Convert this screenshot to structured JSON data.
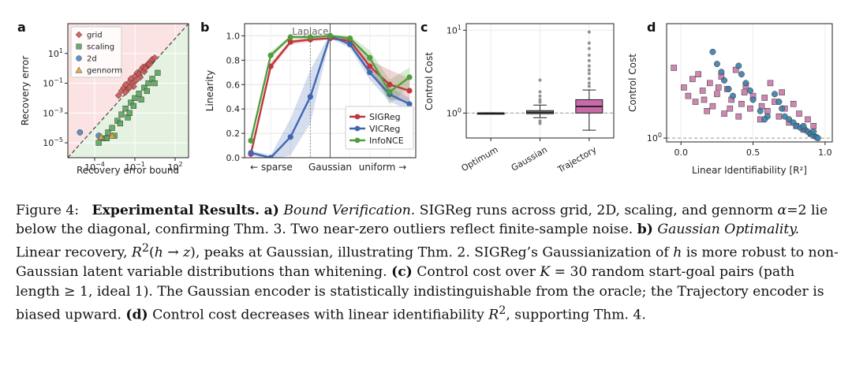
{
  "chart_data": [
    {
      "panel": "a",
      "type": "scatter",
      "xlabel": "Recovery error bound",
      "ylabel": "Recovery error",
      "xscale": "log",
      "yscale": "log",
      "xlim": [
        1e-06,
        1000.0
      ],
      "ylim": [
        1e-06,
        1000.0
      ],
      "xticks": [
        "10^-4",
        "10^-1",
        "10^2"
      ],
      "yticks": [
        "10^-5",
        "10^-3",
        "10^-1",
        "10^1"
      ],
      "legend_placement": "top-left",
      "colors": {
        "above": "#fbe3e3",
        "below": "#e5f2e1",
        "diagonal": "#444444"
      },
      "series": [
        {
          "name": "grid",
          "marker": "diamond",
          "color": "#cc5555",
          "points": [
            [
              0.006,
              0.015
            ],
            [
              0.01,
              0.03
            ],
            [
              0.015,
              0.05
            ],
            [
              0.02,
              0.08
            ],
            [
              0.03,
              0.04
            ],
            [
              0.04,
              0.12
            ],
            [
              0.05,
              0.2
            ],
            [
              0.07,
              0.1
            ],
            [
              0.1,
              0.3
            ],
            [
              0.12,
              0.15
            ],
            [
              0.15,
              0.5
            ],
            [
              0.2,
              0.4
            ],
            [
              0.3,
              0.8
            ],
            [
              0.4,
              1.2
            ],
            [
              0.5,
              0.6
            ],
            [
              0.7,
              1.5
            ],
            [
              1,
              2
            ],
            [
              1.5,
              3
            ],
            [
              2,
              4
            ],
            [
              3,
              5
            ],
            [
              0.08,
              0.06
            ],
            [
              0.25,
              0.25
            ],
            [
              0.6,
              1
            ],
            [
              1.2,
              1.8
            ],
            [
              0.02,
              0.025
            ],
            [
              0.04,
              0.05
            ]
          ]
        },
        {
          "name": "scaling",
          "marker": "square",
          "color": "#5aa55a",
          "points": [
            [
              0.0002,
              1e-05
            ],
            [
              0.0005,
              2e-05
            ],
            [
              0.001,
              5e-05
            ],
            [
              0.002,
              0.0001
            ],
            [
              0.005,
              0.0003
            ],
            [
              0.01,
              0.0008
            ],
            [
              0.02,
              0.002
            ],
            [
              0.05,
              0.005
            ],
            [
              0.1,
              0.01
            ],
            [
              0.2,
              0.02
            ],
            [
              0.5,
              0.05
            ],
            [
              1,
              0.1
            ],
            [
              2,
              0.2
            ],
            [
              5,
              0.5
            ],
            [
              0.003,
              3e-05
            ],
            [
              0.008,
              0.0002
            ],
            [
              0.03,
              0.0005
            ],
            [
              0.08,
              0.003
            ],
            [
              0.3,
              0.008
            ],
            [
              0.8,
              0.03
            ],
            [
              3,
              0.1
            ],
            [
              0.0008,
              2e-05
            ],
            [
              0.04,
              0.001
            ]
          ]
        },
        {
          "name": "2d",
          "marker": "circle",
          "color": "#4f86c6",
          "points": [
            [
              8e-06,
              5e-05
            ],
            [
              0.0002,
              3e-05
            ]
          ]
        },
        {
          "name": "gennorm",
          "marker": "triangle",
          "color": "#e8a23a",
          "points": [
            [
              0.0003,
              2.5e-05
            ],
            [
              0.002,
              3e-05
            ]
          ]
        }
      ]
    },
    {
      "panel": "b",
      "type": "line",
      "ylabel": "Linearity",
      "ylim": [
        0,
        1.1
      ],
      "yticks": [
        "0.0",
        "0.2",
        "0.4",
        "0.6",
        "0.8",
        "1.0"
      ],
      "x_annotations": {
        "left": "← sparse",
        "center": "Gaussian",
        "right": "uniform →",
        "top": "Laplace"
      },
      "x": [
        0,
        1,
        2,
        3,
        4,
        5,
        6,
        7,
        8
      ],
      "legend_placement": "lower-right",
      "series": [
        {
          "name": "SIGReg",
          "color": "#c0363c",
          "values": [
            0.03,
            0.75,
            0.95,
            0.97,
            0.98,
            0.96,
            0.75,
            0.6,
            0.55
          ],
          "band": [
            0.02,
            0.03,
            0.02,
            0.02,
            0.01,
            0.02,
            0.05,
            0.12,
            0.1
          ]
        },
        {
          "name": "VICReg",
          "color": "#3e67b2",
          "values": [
            0.04,
            0.0,
            0.17,
            0.5,
            1.0,
            0.93,
            0.7,
            0.52,
            0.44
          ],
          "band": [
            0.02,
            0.02,
            0.15,
            0.22,
            0.02,
            0.03,
            0.06,
            0.06,
            0.05
          ]
        },
        {
          "name": "InfoNCE",
          "color": "#4f9e3b",
          "values": [
            0.14,
            0.84,
            0.99,
            0.99,
            1.0,
            0.98,
            0.82,
            0.54,
            0.66
          ],
          "band": [
            0.03,
            0.03,
            0.01,
            0.01,
            0.01,
            0.02,
            0.06,
            0.1,
            0.08
          ]
        }
      ]
    },
    {
      "panel": "c",
      "type": "box",
      "ylabel": "Control Cost",
      "yscale": "log",
      "ylim": [
        0.5,
        12
      ],
      "yticks": [
        "10^0",
        "10^1"
      ],
      "reference_line": 1,
      "categories": [
        "Optimum",
        "Gaussian",
        "Trajectory"
      ],
      "boxes": [
        {
          "category": "Optimum",
          "min": 1.0,
          "q1": 1.0,
          "median": 1.0,
          "q3": 1.0,
          "max": 1.0,
          "fliers": [],
          "color": "#333333"
        },
        {
          "category": "Gaussian",
          "min": 0.88,
          "q1": 0.98,
          "median": 1.02,
          "q3": 1.07,
          "max": 1.25,
          "fliers": [
            0.75,
            0.8,
            1.35,
            1.45,
            1.6,
            1.8,
            2.5
          ],
          "color": "#9aa0a6"
        },
        {
          "category": "Trajectory",
          "min": 0.62,
          "q1": 1.0,
          "median": 1.2,
          "q3": 1.45,
          "max": 1.9,
          "fliers": [
            2.1,
            2.3,
            2.6,
            3.0,
            3.3,
            3.7,
            4.3,
            5.0,
            6.0,
            7.0,
            9.5
          ],
          "color": "#c86aa8"
        }
      ]
    },
    {
      "panel": "d",
      "type": "scatter",
      "xlabel": "Linear Identifiability [R²]",
      "ylabel": "Control Cost",
      "yscale": "log",
      "xlim": [
        -0.1,
        1.05
      ],
      "ylim": [
        0.92,
        12
      ],
      "xticks": [
        "0.0",
        "0.5",
        "1.0"
      ],
      "yticks": [
        "10^0"
      ],
      "reference_line": 1,
      "series": [
        {
          "marker": "square",
          "color": "#c97aa9",
          "points": [
            [
              -0.05,
              4.6
            ],
            [
              0.02,
              3.0
            ],
            [
              0.05,
              2.5
            ],
            [
              0.08,
              3.6
            ],
            [
              0.1,
              2.2
            ],
            [
              0.12,
              4.0
            ],
            [
              0.15,
              2.8
            ],
            [
              0.18,
              1.8
            ],
            [
              0.2,
              3.3
            ],
            [
              0.22,
              2.0
            ],
            [
              0.25,
              2.6
            ],
            [
              0.28,
              3.8
            ],
            [
              0.3,
              1.7
            ],
            [
              0.32,
              2.9
            ],
            [
              0.35,
              2.3
            ],
            [
              0.38,
              4.4
            ],
            [
              0.4,
              1.6
            ],
            [
              0.42,
              2.1
            ],
            [
              0.45,
              3.1
            ],
            [
              0.48,
              1.9
            ],
            [
              0.5,
              2.5
            ],
            [
              0.55,
              1.5
            ],
            [
              0.58,
              2.4
            ],
            [
              0.6,
              1.8
            ],
            [
              0.62,
              3.3
            ],
            [
              0.65,
              2.2
            ],
            [
              0.68,
              1.6
            ],
            [
              0.7,
              2.7
            ],
            [
              0.72,
              1.9
            ],
            [
              0.75,
              1.4
            ],
            [
              0.78,
              2.1
            ],
            [
              0.8,
              1.3
            ],
            [
              0.82,
              1.7
            ],
            [
              0.85,
              1.2
            ],
            [
              0.88,
              1.5
            ],
            [
              0.9,
              1.1
            ],
            [
              0.92,
              1.3
            ],
            [
              0.16,
              2.3
            ],
            [
              0.26,
              3.0
            ],
            [
              0.34,
              1.9
            ],
            [
              0.44,
              2.7
            ],
            [
              0.56,
              2.0
            ]
          ]
        },
        {
          "marker": "circle",
          "color": "#3c7ea8",
          "points": [
            [
              0.22,
              6.5
            ],
            [
              0.25,
              5.0
            ],
            [
              0.28,
              4.2
            ],
            [
              0.3,
              3.5
            ],
            [
              0.33,
              2.9
            ],
            [
              0.36,
              2.5
            ],
            [
              0.4,
              4.8
            ],
            [
              0.42,
              4.0
            ],
            [
              0.45,
              3.3
            ],
            [
              0.48,
              2.8
            ],
            [
              0.5,
              2.3
            ],
            [
              0.55,
              1.8
            ],
            [
              0.6,
              1.6
            ],
            [
              0.65,
              2.6
            ],
            [
              0.68,
              2.2
            ],
            [
              0.7,
              1.9
            ],
            [
              0.72,
              1.6
            ],
            [
              0.75,
              1.5
            ],
            [
              0.78,
              1.4
            ],
            [
              0.8,
              1.3
            ],
            [
              0.83,
              1.25
            ],
            [
              0.86,
              1.2
            ],
            [
              0.88,
              1.15
            ],
            [
              0.9,
              1.1
            ],
            [
              0.92,
              1.05
            ],
            [
              0.94,
              1.02
            ],
            [
              0.95,
              1.0
            ],
            [
              0.58,
              1.5
            ],
            [
              0.85,
              1.3
            ],
            [
              0.92,
              1.15
            ]
          ]
        }
      ]
    }
  ]
}
